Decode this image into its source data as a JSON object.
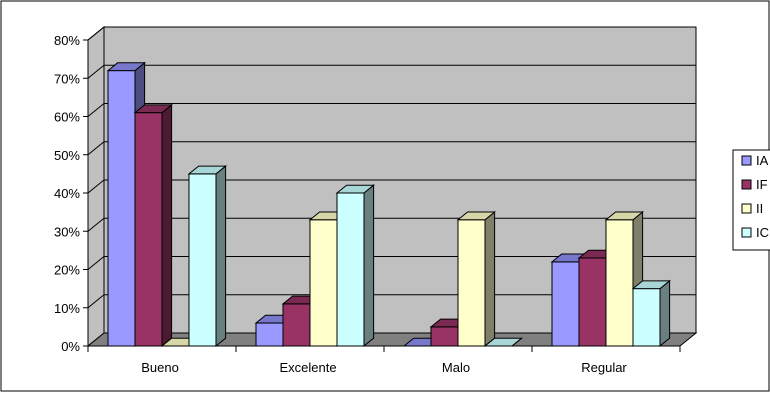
{
  "chart_data": {
    "type": "bar",
    "title": "",
    "xlabel": "",
    "ylabel": "",
    "categories": [
      "Bueno",
      "Excelente",
      "Malo",
      "Regular"
    ],
    "ylim": [
      0,
      80
    ],
    "yticks": [
      "0%",
      "10%",
      "20%",
      "30%",
      "40%",
      "50%",
      "60%",
      "70%",
      "80%"
    ],
    "grid": true,
    "legend_position": "right",
    "series": [
      {
        "name": "IA",
        "values": [
          72,
          6,
          0,
          22
        ]
      },
      {
        "name": "IF",
        "values": [
          61,
          11,
          5,
          23
        ]
      },
      {
        "name": "II",
        "values": [
          0,
          33,
          33,
          33
        ]
      },
      {
        "name": "IC",
        "values": [
          45,
          40,
          0,
          15
        ]
      }
    ],
    "colors": {
      "series_front": [
        "#9999ff",
        "#993366",
        "#ffffcc",
        "#ccffff"
      ],
      "series_side": [
        "#4d4d80",
        "#4d1a33",
        "#80806a",
        "#6a8080"
      ],
      "series_top": [
        "#7777cc",
        "#7a2952",
        "#d6d6a8",
        "#a8d6d6"
      ],
      "plot_wall": "#c0c0c0",
      "plot_floor": "#808080",
      "gridline": "#000000"
    }
  }
}
